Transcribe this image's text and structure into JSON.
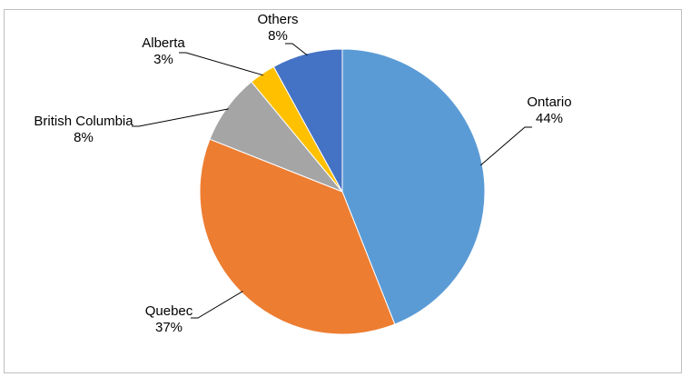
{
  "chart_data": {
    "type": "pie",
    "categories": [
      "Ontario",
      "Quebec",
      "British Columbia",
      "Alberta",
      "Others"
    ],
    "values": [
      44,
      37,
      8,
      3,
      8
    ],
    "value_labels": [
      "44%",
      "37%",
      "8%",
      "3%",
      "8%"
    ],
    "colors": [
      "#5b9bd5",
      "#ed7d31",
      "#a5a5a5",
      "#ffc000",
      "#4472c4"
    ]
  }
}
